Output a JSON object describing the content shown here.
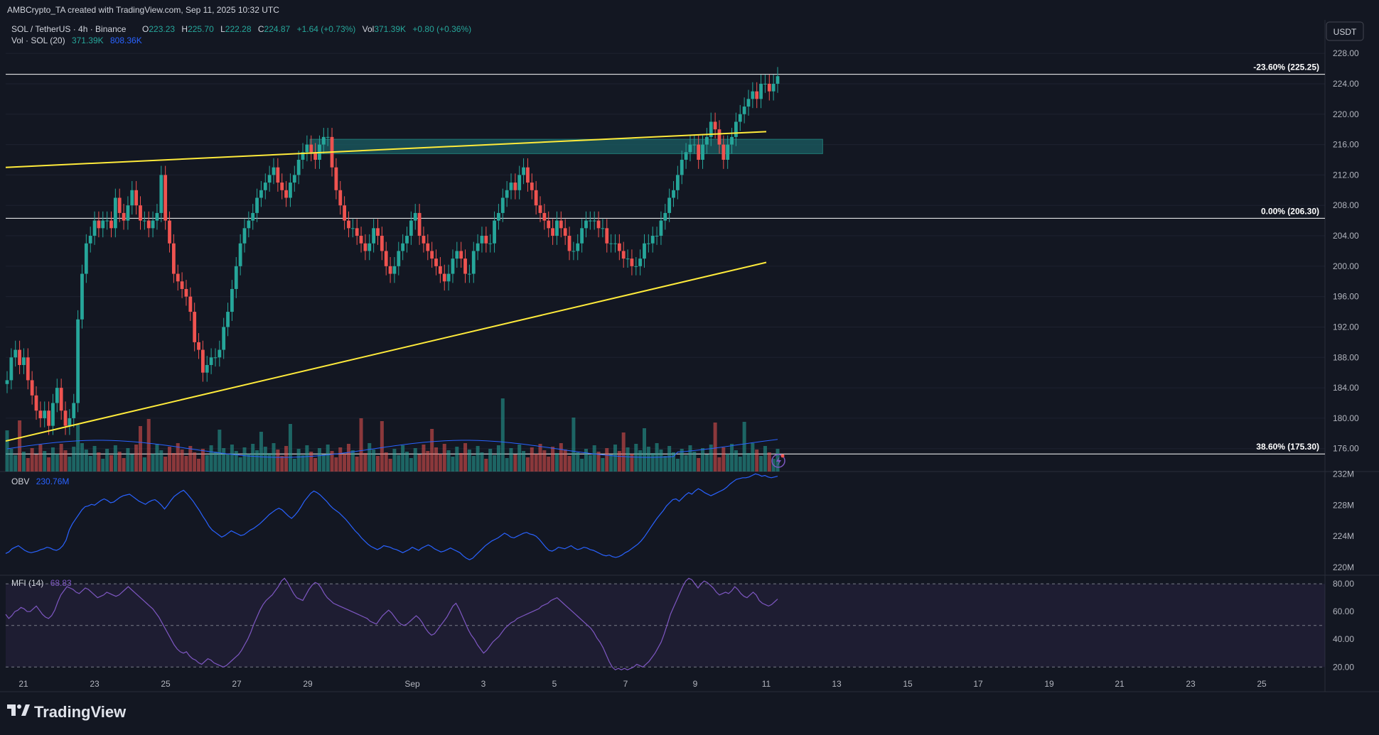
{
  "header": {
    "credit": "AMBCrypto_TA created with TradingView.com, Sep 11, 2025 10:32 UTC"
  },
  "legend": {
    "symbol": "SOL / TetherUS · 4h · Binance",
    "open_label": "O",
    "open": "223.23",
    "high_label": "H",
    "high": "225.70",
    "low_label": "L",
    "low": "222.28",
    "close_label": "C",
    "close": "224.87",
    "change": "+1.64 (+0.73%)",
    "vol_label": "Vol",
    "vol": "371.39K",
    "vol_change": "+0.80 (+0.36%)",
    "vol_study": "Vol · SOL (20)",
    "vol_val": "371.39K",
    "vol_ma": "808.36K"
  },
  "currency_badge": "USDT",
  "obv": {
    "label": "OBV",
    "value": "230.76M"
  },
  "mfi": {
    "label": "MFI (14)",
    "value": "68.83"
  },
  "brand": "TradingView",
  "colors": {
    "bg": "#131722",
    "up": "#26a69a",
    "down": "#ef5350",
    "yellow": "#ffeb3b",
    "obv": "#2962ff",
    "mfi": "#7e57c2",
    "zone": "#1b5e63",
    "text": "#d1d4dc"
  },
  "icons": {
    "replay": "lightning-icon",
    "logo": "tradingview-logo-icon"
  },
  "chart_data": {
    "type": "candlestick",
    "price_axis": {
      "ticks": [
        "228.00",
        "224.00",
        "220.00",
        "216.00",
        "212.00",
        "208.00",
        "204.00",
        "200.00",
        "196.00",
        "192.00",
        "188.00",
        "184.00",
        "180.00",
        "176.00"
      ],
      "range": [
        172.8,
        229.6
      ]
    },
    "time_axis": {
      "ticks": [
        "21",
        "23",
        "25",
        "27",
        "29",
        "Sep",
        "3",
        "5",
        "7",
        "9",
        "11",
        "13",
        "15",
        "17",
        "19",
        "21",
        "23",
        "25"
      ]
    },
    "fib_levels": [
      {
        "label": "-23.60% (225.25)",
        "price": 225.25
      },
      {
        "label": "0.00% (206.30)",
        "price": 206.3
      },
      {
        "label": "38.60% (175.30)",
        "price": 175.3
      }
    ],
    "trendlines": [
      {
        "name": "upper",
        "from": [
          "Aug 20",
          213.0
        ],
        "to": [
          "Sep 11",
          217.7
        ]
      },
      {
        "name": "lower",
        "from": [
          "Aug 20",
          177.0
        ],
        "to": [
          "Sep 11",
          200.5
        ]
      }
    ],
    "zone": {
      "from": "Aug 29",
      "to": "Sep 12",
      "price_low": 214.8,
      "price_high": 216.7
    },
    "closes": [
      185,
      188,
      189,
      187,
      188,
      185,
      183,
      181,
      180,
      181,
      179,
      182,
      184,
      181,
      179,
      180,
      182,
      193,
      199,
      203,
      204,
      206,
      205,
      206,
      206,
      205,
      209,
      207,
      206,
      208,
      210,
      208,
      206,
      206,
      205,
      206,
      207,
      212,
      206,
      203,
      199,
      198,
      197,
      196,
      194,
      190,
      189,
      186,
      187,
      188,
      188,
      189,
      192,
      194,
      197,
      200,
      203,
      205,
      206,
      207,
      209,
      210,
      211,
      212,
      213,
      211,
      210,
      209,
      211,
      212,
      214,
      215,
      216,
      215,
      214,
      216,
      217,
      217,
      213,
      210,
      208,
      206,
      205,
      205,
      204,
      203,
      202,
      203,
      205,
      204,
      202,
      200,
      199,
      200,
      202,
      203,
      204,
      206,
      207,
      204,
      203,
      202,
      201,
      200,
      199,
      198,
      199,
      201,
      202,
      201,
      199,
      199,
      202,
      203,
      204,
      203,
      203,
      206,
      207,
      209,
      210,
      211,
      210,
      212,
      213,
      211,
      210,
      208,
      207,
      206,
      205,
      204,
      206,
      205,
      204,
      202,
      202,
      203,
      205,
      206,
      206,
      206,
      205,
      205,
      203,
      203,
      203,
      202,
      201,
      201,
      200,
      200,
      201,
      203,
      203,
      204,
      204,
      206,
      207,
      209,
      210,
      212,
      214,
      215,
      216,
      216,
      214,
      216,
      217,
      219,
      218,
      216,
      214,
      216,
      217,
      219,
      220,
      221,
      222,
      223,
      222,
      224,
      224,
      223,
      224,
      225
    ],
    "obv_axis": {
      "ticks": [
        "232M",
        "228M",
        "224M",
        "220M"
      ],
      "range": [
        219.2,
        232.3
      ]
    },
    "obv": [
      221.8,
      222.0,
      222.4,
      222.6,
      222.8,
      222.5,
      222.2,
      222.0,
      221.9,
      222.0,
      222.1,
      222.3,
      222.4,
      222.6,
      222.5,
      222.3,
      222.2,
      222.4,
      222.8,
      223.5,
      224.8,
      225.6,
      226.2,
      226.8,
      227.4,
      227.8,
      227.9,
      228.1,
      228.0,
      228.3,
      228.6,
      228.8,
      228.6,
      228.3,
      228.4,
      228.7,
      229.0,
      229.2,
      229.3,
      229.4,
      229.1,
      228.8,
      228.5,
      228.3,
      228.1,
      228.4,
      228.6,
      228.7,
      228.4,
      228.0,
      227.5,
      228.0,
      228.6,
      229.1,
      229.4,
      229.7,
      229.9,
      229.5,
      229.0,
      228.5,
      227.9,
      227.3,
      226.6,
      226.0,
      225.3,
      224.8,
      224.5,
      224.2,
      223.9,
      224.1,
      224.4,
      224.7,
      224.5,
      224.3,
      224.1,
      224.2,
      224.5,
      224.8,
      225.0,
      225.3,
      225.6,
      226.0,
      226.4,
      226.8,
      227.1,
      227.4,
      227.6,
      227.4,
      227.0,
      226.6,
      226.3,
      226.7,
      227.2,
      227.8,
      228.5,
      229.0,
      229.5,
      229.8,
      229.6,
      229.3,
      228.9,
      228.5,
      228.0,
      227.6,
      227.3,
      227.0,
      226.6,
      226.2,
      225.7,
      225.2,
      224.7,
      224.3,
      223.8,
      223.4,
      223.0,
      222.7,
      222.5,
      222.3,
      222.5,
      222.8,
      222.7,
      222.6,
      222.4,
      222.3,
      222.1,
      221.9,
      222.1,
      222.3,
      222.6,
      222.4,
      222.2,
      222.5,
      222.7,
      222.9,
      222.7,
      222.4,
      222.2,
      222.0,
      222.1,
      222.3,
      222.5,
      222.3,
      222.1,
      221.9,
      221.5,
      221.2,
      221.0,
      221.2,
      221.6,
      222.0,
      222.4,
      222.8,
      223.1,
      223.4,
      223.6,
      223.8,
      224.1,
      224.4,
      224.2,
      223.9,
      223.8,
      224.0,
      224.2,
      224.4,
      224.5,
      224.3,
      224.2,
      224.0,
      223.6,
      223.1,
      222.6,
      222.2,
      222.1,
      222.3,
      222.6,
      222.5,
      222.4,
      222.6,
      222.8,
      222.5,
      222.3,
      222.4,
      222.6,
      222.5,
      222.3,
      222.2,
      222.0,
      221.8,
      221.6,
      221.5,
      221.6,
      221.4,
      221.3,
      221.4,
      221.6,
      221.9,
      222.1,
      222.4,
      222.7,
      223.0,
      223.4,
      223.9,
      224.5,
      225.1,
      225.7,
      226.3,
      226.8,
      227.3,
      227.9,
      228.3,
      228.7,
      228.8,
      228.5,
      228.9,
      229.3,
      229.6,
      229.4,
      229.8,
      230.1,
      229.9,
      229.6,
      229.4,
      229.2,
      229.4,
      229.6,
      229.8,
      230.0,
      230.3,
      230.7,
      231.0,
      231.3,
      231.4,
      231.5,
      231.5,
      231.6,
      231.8,
      232.0,
      231.9,
      231.7,
      231.8,
      231.6,
      231.5,
      231.6,
      231.7
    ],
    "mfi_axis": {
      "ticks": [
        "80.00",
        "60.00",
        "40.00",
        "20.00"
      ],
      "range": [
        14.5,
        85.2
      ],
      "band": [
        20,
        80
      ],
      "mid": 50
    },
    "mfi": [
      58,
      55,
      57,
      60,
      61,
      63,
      62,
      60,
      60,
      62,
      64,
      61,
      58,
      56,
      55,
      57,
      61,
      67,
      72,
      75,
      78,
      77,
      76,
      74,
      73,
      75,
      77,
      76,
      74,
      72,
      70,
      71,
      72,
      74,
      73,
      72,
      71,
      72,
      74,
      76,
      78,
      76,
      74,
      72,
      70,
      68,
      66,
      64,
      62,
      59,
      56,
      52,
      48,
      44,
      40,
      36,
      33,
      31,
      30,
      31,
      28,
      26,
      25,
      23,
      22,
      24,
      26,
      25,
      23,
      22,
      21,
      20,
      21,
      23,
      25,
      27,
      29,
      32,
      36,
      40,
      45,
      51,
      56,
      61,
      65,
      68,
      70,
      72,
      75,
      78,
      82,
      84,
      81,
      77,
      73,
      70,
      69,
      68,
      72,
      76,
      79,
      81,
      80,
      77,
      73,
      70,
      68,
      66,
      65,
      64,
      63,
      62,
      61,
      60,
      59,
      58,
      57,
      56,
      55,
      53,
      52,
      51,
      54,
      57,
      59,
      61,
      59,
      56,
      53,
      51,
      50,
      51,
      53,
      55,
      57,
      55,
      52,
      48,
      45,
      43,
      44,
      47,
      50,
      53,
      56,
      60,
      64,
      66,
      62,
      57,
      52,
      47,
      43,
      40,
      36,
      33,
      30,
      32,
      35,
      38,
      40,
      42,
      45,
      48,
      50,
      52,
      53,
      55,
      56,
      57,
      58,
      59,
      60,
      61,
      62,
      64,
      65,
      66,
      68,
      69,
      70,
      68,
      66,
      64,
      62,
      60,
      58,
      56,
      54,
      52,
      50,
      48,
      45,
      41,
      38,
      34,
      29,
      24,
      20,
      18,
      19,
      18,
      19,
      18,
      19,
      20,
      22,
      21,
      20,
      22,
      24,
      27,
      30,
      34,
      38,
      44,
      51,
      58,
      63,
      68,
      73,
      78,
      82,
      84,
      83,
      80,
      77,
      80,
      82,
      81,
      79,
      77,
      74,
      72,
      73,
      74,
      73,
      75,
      78,
      76,
      73,
      71,
      70,
      72,
      74,
      72,
      68,
      66,
      65,
      64,
      65,
      67,
      69
    ]
  }
}
